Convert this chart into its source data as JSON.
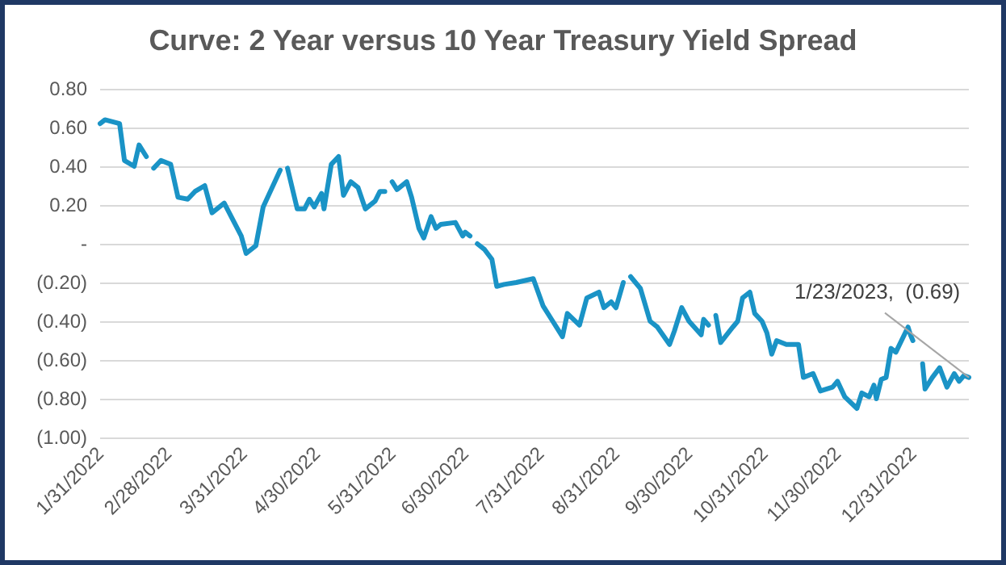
{
  "chart_data": {
    "type": "line",
    "title": "Curve: 2 Year versus 10 Year Treasury Yield Spread",
    "x": [
      "2022-01-31",
      "2022-02-02",
      "2022-02-08",
      "2022-02-10",
      "2022-02-14",
      "2022-02-16",
      "2022-02-19",
      "2022-02-20",
      "2022-02-22",
      "2022-02-25",
      "2022-03-01",
      "2022-03-04",
      "2022-03-08",
      "2022-03-11",
      "2022-03-15",
      "2022-03-18",
      "2022-03-23",
      "2022-03-30",
      "2022-04-01",
      "2022-04-05",
      "2022-04-08",
      "2022-04-15",
      "2022-04-16",
      "2022-04-18",
      "2022-04-22",
      "2022-04-25",
      "2022-04-27",
      "2022-04-29",
      "2022-05-02",
      "2022-05-03",
      "2022-05-06",
      "2022-05-09",
      "2022-05-11",
      "2022-05-14",
      "2022-05-17",
      "2022-05-20",
      "2022-05-24",
      "2022-05-26",
      "2022-05-28",
      "2022-05-29",
      "2022-05-31",
      "2022-06-02",
      "2022-06-05",
      "2022-06-06",
      "2022-06-08",
      "2022-06-11",
      "2022-06-13",
      "2022-06-16",
      "2022-06-18",
      "2022-06-20",
      "2022-06-26",
      "2022-06-29",
      "2022-06-30",
      "2022-07-02",
      "2022-07-03",
      "2022-07-05",
      "2022-07-08",
      "2022-07-11",
      "2022-07-13",
      "2022-07-16",
      "2022-07-21",
      "2022-07-28",
      "2022-08-01",
      "2022-08-05",
      "2022-08-09",
      "2022-08-11",
      "2022-08-16",
      "2022-08-19",
      "2022-08-24",
      "2022-08-26",
      "2022-08-29",
      "2022-08-31",
      "2022-09-03",
      "2022-09-04",
      "2022-09-06",
      "2022-09-10",
      "2022-09-14",
      "2022-09-17",
      "2022-09-22",
      "2022-09-24",
      "2022-09-27",
      "2022-09-30",
      "2022-10-05",
      "2022-10-06",
      "2022-10-08",
      "2022-10-09",
      "2022-10-11",
      "2022-10-13",
      "2022-10-18",
      "2022-10-20",
      "2022-10-22",
      "2022-10-25",
      "2022-10-27",
      "2022-10-30",
      "2022-11-01",
      "2022-11-03",
      "2022-11-05",
      "2022-11-09",
      "2022-11-14",
      "2022-11-16",
      "2022-11-20",
      "2022-11-23",
      "2022-11-28",
      "2022-11-30",
      "2022-12-03",
      "2022-12-08",
      "2022-12-10",
      "2022-12-13",
      "2022-12-15",
      "2022-12-16",
      "2022-12-18",
      "2022-12-20",
      "2022-12-22",
      "2022-12-24",
      "2022-12-29",
      "2022-12-30",
      "2022-12-31",
      "2023-01-02",
      "2023-01-04",
      "2023-01-05",
      "2023-01-08",
      "2023-01-11",
      "2023-01-14",
      "2023-01-17",
      "2023-01-19",
      "2023-01-21",
      "2023-01-23"
    ],
    "series": [
      {
        "color": "#1a93c6",
        "values": [
          0.62,
          0.64,
          0.62,
          0.43,
          0.4,
          0.51,
          0.45,
          null,
          0.39,
          0.43,
          0.41,
          0.24,
          0.23,
          0.27,
          0.3,
          0.16,
          0.21,
          0.04,
          -0.05,
          -0.01,
          0.19,
          0.38,
          null,
          0.39,
          0.18,
          0.18,
          0.23,
          0.19,
          0.26,
          0.18,
          0.41,
          0.45,
          0.25,
          0.32,
          0.29,
          0.18,
          0.22,
          0.27,
          0.27,
          null,
          0.32,
          0.28,
          0.31,
          0.32,
          0.24,
          0.08,
          0.03,
          0.14,
          0.08,
          0.1,
          0.11,
          0.04,
          0.06,
          0.04,
          null,
          0.0,
          -0.03,
          -0.08,
          -0.22,
          -0.21,
          -0.2,
          -0.18,
          -0.32,
          -0.4,
          -0.48,
          -0.36,
          -0.42,
          -0.28,
          -0.25,
          -0.33,
          -0.3,
          -0.33,
          -0.2,
          null,
          -0.17,
          -0.23,
          -0.4,
          -0.43,
          -0.52,
          -0.45,
          -0.33,
          -0.4,
          -0.47,
          -0.39,
          -0.42,
          null,
          -0.37,
          -0.51,
          -0.43,
          -0.4,
          -0.28,
          -0.25,
          -0.36,
          -0.4,
          -0.46,
          -0.57,
          -0.5,
          -0.52,
          -0.52,
          -0.69,
          -0.67,
          -0.76,
          -0.74,
          -0.71,
          -0.79,
          -0.85,
          -0.77,
          -0.79,
          -0.73,
          -0.8,
          -0.7,
          -0.69,
          -0.54,
          -0.56,
          -0.43,
          -0.47,
          -0.5,
          null,
          -0.62,
          -0.75,
          -0.69,
          -0.64,
          -0.74,
          -0.67,
          -0.71,
          -0.68,
          -0.69
        ]
      }
    ],
    "xlim": [
      "2022-01-31",
      "2023-01-23"
    ],
    "xticks": [
      {
        "value": "2022-01-31",
        "label": "1/31/2022"
      },
      {
        "value": "2022-02-28",
        "label": "2/28/2022"
      },
      {
        "value": "2022-03-31",
        "label": "3/31/2022"
      },
      {
        "value": "2022-04-30",
        "label": "4/30/2022"
      },
      {
        "value": "2022-05-31",
        "label": "5/31/2022"
      },
      {
        "value": "2022-06-30",
        "label": "6/30/2022"
      },
      {
        "value": "2022-07-31",
        "label": "7/31/2022"
      },
      {
        "value": "2022-08-31",
        "label": "8/31/2022"
      },
      {
        "value": "2022-09-30",
        "label": "9/30/2022"
      },
      {
        "value": "2022-10-31",
        "label": "10/31/2022"
      },
      {
        "value": "2022-11-30",
        "label": "11/30/2022"
      },
      {
        "value": "2022-12-31",
        "label": "12/31/2022"
      }
    ],
    "ylim": [
      -1.0,
      0.8
    ],
    "yticks": [
      {
        "value": -1.0,
        "label": "(1.00)"
      },
      {
        "value": -0.8,
        "label": "(0.80)"
      },
      {
        "value": -0.6,
        "label": "(0.60)"
      },
      {
        "value": -0.4,
        "label": "(0.40)"
      },
      {
        "value": -0.2,
        "label": "(0.20)"
      },
      {
        "value": 0,
        "label": "-"
      },
      {
        "value": 0.2,
        "label": "0.20"
      },
      {
        "value": 0.4,
        "label": "0.40"
      },
      {
        "value": 0.6,
        "label": "0.60"
      },
      {
        "value": 0.8,
        "label": "0.80"
      }
    ],
    "annotations": [
      {
        "text": "1/23/2023,  (0.69)",
        "x": "2023-01-23",
        "y": -0.69
      }
    ],
    "grid": "y",
    "marker": "none",
    "line_style": "solid"
  }
}
